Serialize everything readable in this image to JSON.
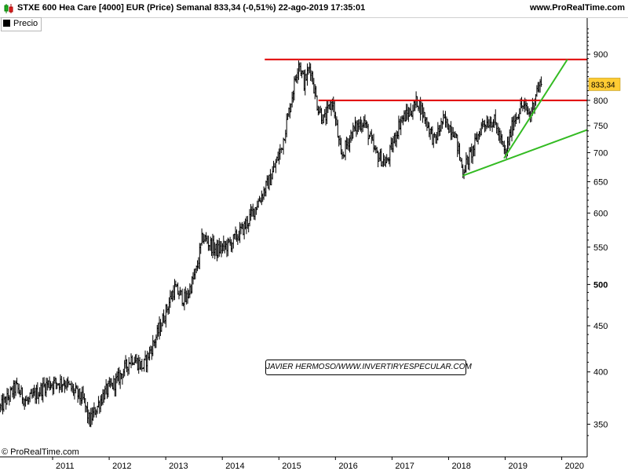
{
  "header": {
    "title": "STXE 600 Hea Care [4000] EUR (Price) Semanal 833,34 (-0,51%) 22-ago-2019 17:35:01",
    "website": "www.ProRealTime.com",
    "icon": "candlestick-icon"
  },
  "legend": {
    "label": "Precio",
    "color": "#000000"
  },
  "watermark": "© ProRealTime.com",
  "credit": "JAVIER HERMOSO/WWW.INVERTIRYESPECULAR.COM",
  "chart_data": {
    "type": "bar",
    "style": "weekly OHLC bars",
    "y_scale": "log",
    "ylim": [
      322,
      985
    ],
    "xlim": [
      2010.07,
      2020.45
    ],
    "grid": false,
    "legend_position": "top-left",
    "y_ticks": [
      {
        "value": 350,
        "label": "350"
      },
      {
        "value": 400,
        "label": "400"
      },
      {
        "value": 450,
        "label": "450"
      },
      {
        "value": 500,
        "label": "500"
      },
      {
        "value": 550,
        "label": "550"
      },
      {
        "value": 600,
        "label": "600"
      },
      {
        "value": 650,
        "label": "650"
      },
      {
        "value": 700,
        "label": "700"
      },
      {
        "value": 750,
        "label": "750"
      },
      {
        "value": 800,
        "label": "800"
      },
      {
        "value": 900,
        "label": "900"
      }
    ],
    "x_ticks": [
      "2011",
      "2012",
      "2013",
      "2014",
      "2015",
      "2016",
      "2017",
      "2018",
      "2019",
      "2020"
    ],
    "last_value": 833.34,
    "last_value_label": "833,34",
    "last_value_color": "#ffcc33",
    "price_path": [
      [
        2010.08,
        365
      ],
      [
        2010.35,
        385
      ],
      [
        2010.55,
        370
      ],
      [
        2010.9,
        388
      ],
      [
        2011.2,
        390
      ],
      [
        2011.55,
        372
      ],
      [
        2011.65,
        352
      ],
      [
        2011.9,
        378
      ],
      [
        2012.15,
        392
      ],
      [
        2012.4,
        415
      ],
      [
        2012.6,
        405
      ],
      [
        2012.85,
        440
      ],
      [
        2013.15,
        495
      ],
      [
        2013.35,
        480
      ],
      [
        2013.55,
        520
      ],
      [
        2013.65,
        565
      ],
      [
        2013.9,
        545
      ],
      [
        2014.15,
        555
      ],
      [
        2014.4,
        580
      ],
      [
        2014.65,
        620
      ],
      [
        2014.85,
        655
      ],
      [
        2015.05,
        710
      ],
      [
        2015.2,
        790
      ],
      [
        2015.35,
        885
      ],
      [
        2015.45,
        835
      ],
      [
        2015.55,
        875
      ],
      [
        2015.68,
        790
      ],
      [
        2015.8,
        760
      ],
      [
        2015.95,
        800
      ],
      [
        2016.1,
        690
      ],
      [
        2016.3,
        740
      ],
      [
        2016.5,
        760
      ],
      [
        2016.7,
        700
      ],
      [
        2016.9,
        680
      ],
      [
        2017.15,
        760
      ],
      [
        2017.35,
        780
      ],
      [
        2017.45,
        800
      ],
      [
        2017.6,
        760
      ],
      [
        2017.75,
        720
      ],
      [
        2017.9,
        760
      ],
      [
        2018.1,
        740
      ],
      [
        2018.25,
        668
      ],
      [
        2018.45,
        710
      ],
      [
        2018.6,
        755
      ],
      [
        2018.8,
        760
      ],
      [
        2018.9,
        730
      ],
      [
        2019.0,
        695
      ],
      [
        2019.15,
        760
      ],
      [
        2019.3,
        790
      ],
      [
        2019.45,
        770
      ],
      [
        2019.55,
        820
      ],
      [
        2019.64,
        833.34
      ]
    ],
    "trendlines": [
      {
        "name": "resistance-high",
        "color": "#e00000",
        "from": [
          2014.75,
          888
        ],
        "to": [
          2020.45,
          888
        ]
      },
      {
        "name": "resistance-mid",
        "color": "#e00000",
        "from": [
          2015.7,
          800
        ],
        "to": [
          2020.45,
          800
        ]
      },
      {
        "name": "support-long",
        "color": "#33bb22",
        "from": [
          2018.25,
          660
        ],
        "to": [
          2020.45,
          742
        ]
      },
      {
        "name": "support-steep",
        "color": "#33bb22",
        "from": [
          2018.98,
          690
        ],
        "to": [
          2020.1,
          888
        ]
      }
    ]
  }
}
